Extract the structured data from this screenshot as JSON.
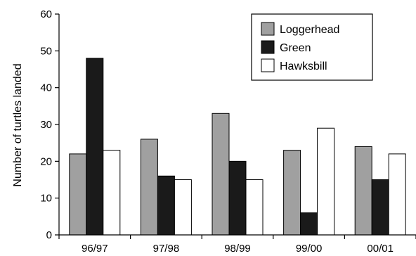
{
  "chart_data": {
    "type": "bar",
    "title": "",
    "xlabel": "",
    "ylabel": "Number of turtles landed",
    "ylim": [
      0,
      60
    ],
    "yticks": [
      0,
      10,
      20,
      30,
      40,
      50,
      60
    ],
    "categories": [
      "96/97",
      "97/98",
      "98/99",
      "99/00",
      "00/01"
    ],
    "series": [
      {
        "name": "Loggerhead",
        "color": "#a0a0a0",
        "values": [
          22,
          26,
          33,
          23,
          24
        ]
      },
      {
        "name": "Green",
        "color": "#1a1a1a",
        "values": [
          48,
          16,
          20,
          6,
          15
        ]
      },
      {
        "name": "Hawksbill",
        "color": "#ffffff",
        "values": [
          23,
          15,
          15,
          29,
          22
        ]
      }
    ],
    "legend_position": "top-right",
    "grid": false
  }
}
